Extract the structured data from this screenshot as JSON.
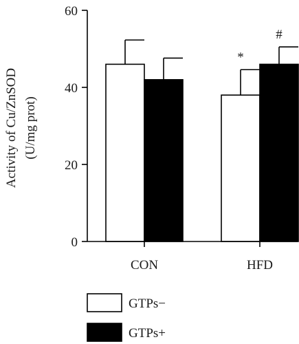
{
  "chart_data": {
    "type": "bar",
    "title": "",
    "xlabel": "",
    "ylabel_line1": "Activity of Cu/ZnSOD",
    "ylabel_line2": "(U/mg prot)",
    "ylim": [
      0,
      60
    ],
    "yticks": [
      0,
      20,
      40,
      60
    ],
    "categories": [
      "CON",
      "HFD"
    ],
    "series": [
      {
        "name": "GTPs−",
        "values": [
          46,
          38
        ],
        "errors": [
          6.3,
          6.6
        ],
        "color": "#ffffff"
      },
      {
        "name": "GTPs+",
        "values": [
          42,
          46
        ],
        "errors": [
          5.6,
          4.5
        ],
        "color": "#000000"
      }
    ],
    "annotations": [
      {
        "category": "HFD",
        "series": "GTPs−",
        "text": "*"
      },
      {
        "category": "HFD",
        "series": "GTPs+",
        "text": "#"
      }
    ],
    "legend_position": "bottom-left",
    "grid": false
  }
}
